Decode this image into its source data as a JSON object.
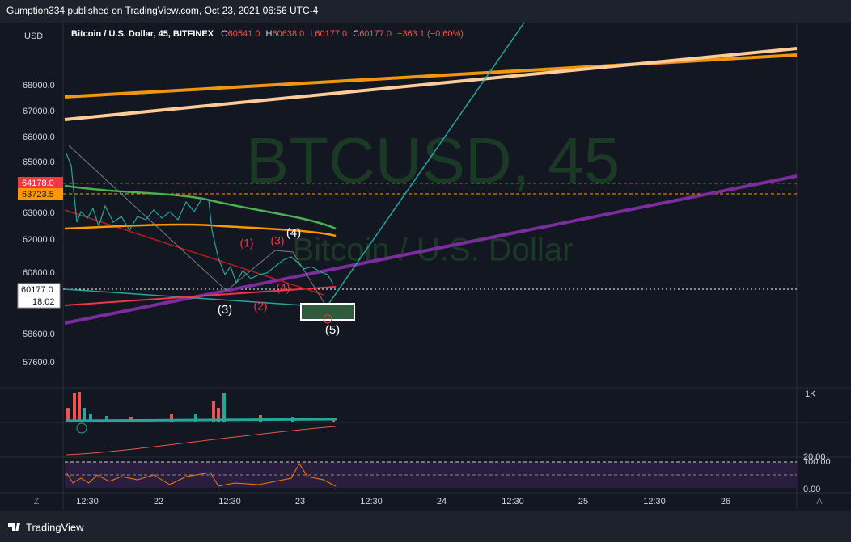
{
  "header": {
    "published": "Gumption334 published on TradingView.com, Oct 23, 2021 06:56 UTC-4"
  },
  "legend": {
    "currency": "USD",
    "symbol": "Bitcoin / U.S. Dollar, 45, BITFINEX",
    "open_label": "O",
    "open": "60541.0",
    "high_label": "H",
    "high": "60638.0",
    "low_label": "L",
    "low": "60177.0",
    "close_label": "C",
    "close": "60177.0",
    "change": "−363.1 (−0.60%)"
  },
  "watermark": {
    "ticker": "BTCUSD, 45",
    "name": "Bitcoin / U.S. Dollar"
  },
  "price_axis": [
    "68000.0",
    "67000.0",
    "66000.0",
    "65000.0",
    "63000.0",
    "62000.0",
    "60800.0",
    "58600.0",
    "57600.0"
  ],
  "price_badges": {
    "red": "64178.0",
    "orange": "63723.5",
    "last": "60177.0",
    "countdown": "18:02"
  },
  "time_axis": [
    "12:30",
    "22",
    "12:30",
    "23",
    "12:30",
    "24",
    "12:30",
    "25",
    "12:30",
    "26"
  ],
  "waves": [
    "(1)",
    "(3)",
    "(4)",
    "(3)",
    "(2)",
    "(4)",
    "(5)"
  ],
  "panes": {
    "volume_scale": "1K",
    "rsi_top": "100.00",
    "rsi_mid": "20.00",
    "rsi_bottom": "0.00"
  },
  "corners": {
    "left": "Z",
    "right": "A"
  },
  "footer": {
    "brand": "TradingView"
  }
}
